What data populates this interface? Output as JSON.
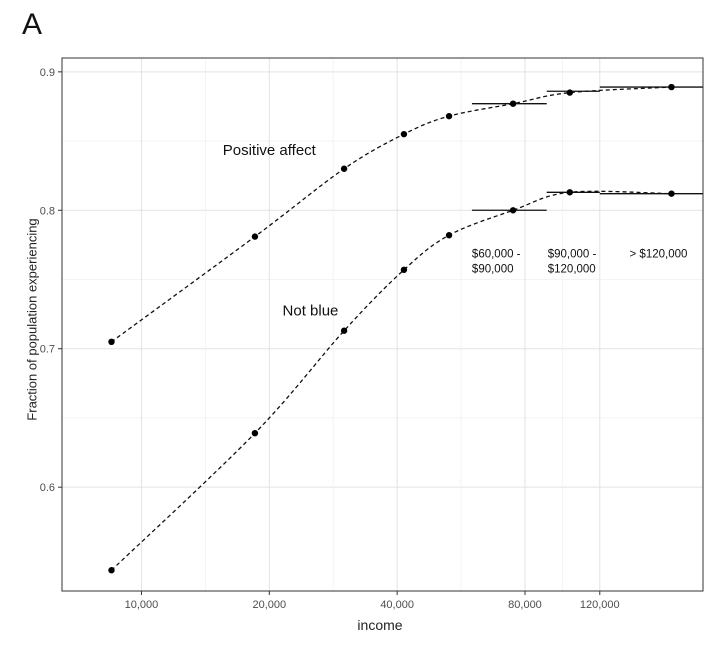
{
  "panel_label": "A",
  "chart_data": {
    "type": "line",
    "title": "",
    "xlabel": "income",
    "ylabel": "Fraction of population experiencing",
    "x_scale": "log",
    "xlim": [
      6500,
      210000
    ],
    "ylim": [
      0.525,
      0.91
    ],
    "grid": true,
    "x_ticks": [
      {
        "value": 10000,
        "label": "10,000"
      },
      {
        "value": 20000,
        "label": "20,000"
      },
      {
        "value": 40000,
        "label": "40,000"
      },
      {
        "value": 80000,
        "label": "80,000"
      },
      {
        "value": 120000,
        "label": "120,000"
      }
    ],
    "y_ticks": [
      {
        "value": 0.6,
        "label": "0.6"
      },
      {
        "value": 0.7,
        "label": "0.7"
      },
      {
        "value": 0.8,
        "label": "0.8"
      },
      {
        "value": 0.9,
        "label": "0.9"
      }
    ],
    "series": [
      {
        "name": "Positive affect",
        "label_anchor": {
          "x": 20000,
          "y": 0.84
        },
        "points": [
          {
            "x": 8500,
            "y": 0.705
          },
          {
            "x": 18500,
            "y": 0.781
          },
          {
            "x": 30000,
            "y": 0.83
          },
          {
            "x": 41500,
            "y": 0.855
          },
          {
            "x": 53000,
            "y": 0.868
          },
          {
            "x": 75000,
            "y": 0.877
          },
          {
            "x": 102000,
            "y": 0.885
          },
          {
            "x": 177000,
            "y": 0.889
          }
        ],
        "ranges": [
          {
            "x_from": 60000,
            "x_to": 90000,
            "y": 0.877
          },
          {
            "x_from": 90000,
            "x_to": 120000,
            "y": 0.886
          },
          {
            "x_from": 120000,
            "x_to": 210000,
            "y": 0.889
          }
        ]
      },
      {
        "name": "Not blue",
        "label_anchor": {
          "x": 25000,
          "y": 0.724
        },
        "points": [
          {
            "x": 8500,
            "y": 0.54
          },
          {
            "x": 18500,
            "y": 0.639
          },
          {
            "x": 30000,
            "y": 0.713
          },
          {
            "x": 41500,
            "y": 0.757
          },
          {
            "x": 53000,
            "y": 0.782
          },
          {
            "x": 75000,
            "y": 0.8
          },
          {
            "x": 102000,
            "y": 0.813
          },
          {
            "x": 177000,
            "y": 0.812
          }
        ],
        "ranges": [
          {
            "x_from": 60000,
            "x_to": 90000,
            "y": 0.8
          },
          {
            "x_from": 90000,
            "x_to": 120000,
            "y": 0.813
          },
          {
            "x_from": 120000,
            "x_to": 210000,
            "y": 0.812
          }
        ]
      }
    ],
    "annotations": [
      {
        "lines": [
          "$60,000 -",
          "$90,000"
        ],
        "x": 60000,
        "y": 0.766
      },
      {
        "lines": [
          "$90,000 -",
          "$120,000"
        ],
        "x": 90500,
        "y": 0.766
      },
      {
        "lines": [
          "> $120,000"
        ],
        "x": 141000,
        "y": 0.766
      }
    ]
  }
}
